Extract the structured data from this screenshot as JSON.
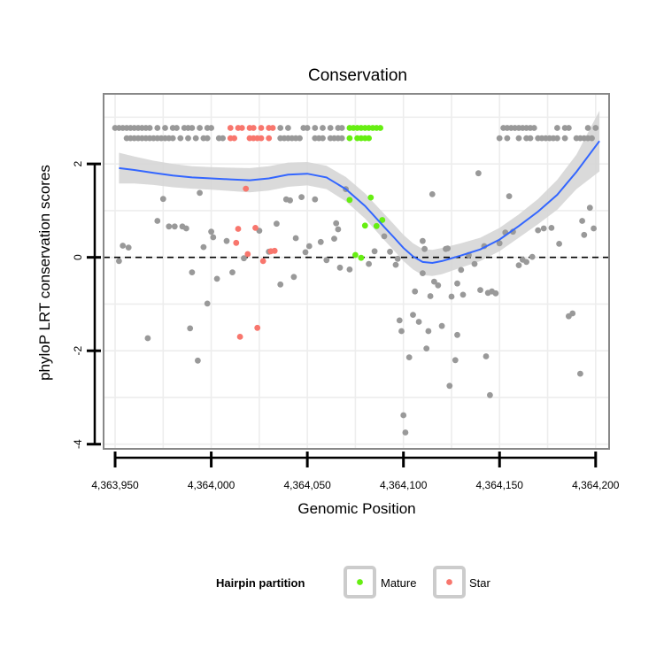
{
  "chart_data": {
    "type": "scatter",
    "title": "Conservation",
    "xlabel": "Genomic Position",
    "ylabel": "phyloP LRT conservation scores",
    "xlim": [
      4363944,
      4364207
    ],
    "ylim": [
      -4.1,
      3.5
    ],
    "x_ticks": [
      4363950,
      4364000,
      4364050,
      4364100,
      4364150,
      4364200
    ],
    "x_tick_labels": [
      "4,363,950",
      "4,364,000",
      "4,364,050",
      "4,364,100",
      "4,364,150",
      "4,364,200"
    ],
    "y_ticks": [
      -4,
      -2,
      0,
      2
    ],
    "y_tick_labels": [
      "-4",
      "-2",
      "0",
      "2"
    ],
    "grid": true,
    "reference_line": {
      "y": 0,
      "style": "dashed"
    },
    "legend": {
      "title": "Hairpin partition",
      "placement": "bottom",
      "entries": [
        {
          "label": "Mature",
          "color": "#66ee11"
        },
        {
          "label": "Star",
          "color": "#f8766d"
        }
      ]
    },
    "colors": {
      "other": "#999999",
      "Mature": "#66ee11",
      "Star": "#f8766d",
      "smooth": "#3366ff",
      "ribbon": "#d3d3d3",
      "panel_border": "#888888",
      "grid": "#ededed"
    },
    "series": [
      {
        "name": "Other",
        "points": [
          [
            4363952,
            -0.08
          ],
          [
            4363954,
            0.25
          ],
          [
            4363957,
            0.21
          ],
          [
            4363967,
            -1.73
          ],
          [
            4363972,
            0.78
          ],
          [
            4363975,
            1.25
          ],
          [
            4363978,
            0.66
          ],
          [
            4363981,
            0.66
          ],
          [
            4363985,
            0.66
          ],
          [
            4363987,
            0.62
          ],
          [
            4363989,
            -1.52
          ],
          [
            4363990,
            -0.32
          ],
          [
            4363993,
            -2.21
          ],
          [
            4363994,
            1.38
          ],
          [
            4363996,
            0.22
          ],
          [
            4363998,
            -0.99
          ],
          [
            4364000,
            0.55
          ],
          [
            4364001,
            0.43
          ],
          [
            4364003,
            -0.46
          ],
          [
            4364008,
            0.35
          ],
          [
            4364011,
            -0.32
          ],
          [
            4364017,
            -0.02
          ],
          [
            4364025,
            0.57
          ],
          [
            4364030,
            0.12
          ],
          [
            4364034,
            0.72
          ],
          [
            4364036,
            -0.58
          ],
          [
            4364039,
            1.24
          ],
          [
            4364041,
            1.22
          ],
          [
            4364043,
            -0.42
          ],
          [
            4364044,
            0.41
          ],
          [
            4364047,
            1.29
          ],
          [
            4364049,
            0.11
          ],
          [
            4364051,
            0.24
          ],
          [
            4364054,
            1.24
          ],
          [
            4364057,
            0.33
          ],
          [
            4364060,
            -0.06
          ],
          [
            4364064,
            0.4
          ],
          [
            4364065,
            0.73
          ],
          [
            4364066,
            0.6
          ],
          [
            4364067,
            -0.22
          ],
          [
            4364070,
            1.46
          ],
          [
            4364072,
            -0.26
          ],
          [
            4364082,
            -0.14
          ],
          [
            4364085,
            0.13
          ],
          [
            4364090,
            0.45
          ],
          [
            4364093,
            0.12
          ],
          [
            4364096,
            -0.16
          ],
          [
            4364097,
            -0.03
          ],
          [
            4364098,
            -1.35
          ],
          [
            4364099,
            -1.58
          ],
          [
            4364100,
            -3.38
          ],
          [
            4364101,
            -3.75
          ],
          [
            4364103,
            -2.14
          ],
          [
            4364105,
            -1.23
          ],
          [
            4364106,
            -0.73
          ],
          [
            4364108,
            -1.38
          ],
          [
            4364110,
            0.35
          ],
          [
            4364110,
            -0.34
          ],
          [
            4364111,
            0.18
          ],
          [
            4364112,
            -1.95
          ],
          [
            4364113,
            -1.58
          ],
          [
            4364114,
            -0.83
          ],
          [
            4364115,
            1.35
          ],
          [
            4364116,
            -0.52
          ],
          [
            4364118,
            -0.6
          ],
          [
            4364120,
            -1.47
          ],
          [
            4364122,
            0.18
          ],
          [
            4364123,
            0.19
          ],
          [
            4364124,
            -2.75
          ],
          [
            4364125,
            -0.84
          ],
          [
            4364127,
            -2.2
          ],
          [
            4364128,
            -1.66
          ],
          [
            4364128,
            -0.56
          ],
          [
            4364130,
            -0.27
          ],
          [
            4364131,
            -0.8
          ],
          [
            4364134,
            0.05
          ],
          [
            4364137,
            -0.14
          ],
          [
            4364139,
            1.8
          ],
          [
            4364140,
            -0.7
          ],
          [
            4364142,
            0.24
          ],
          [
            4364143,
            -2.12
          ],
          [
            4364144,
            -0.76
          ],
          [
            4364145,
            -2.95
          ],
          [
            4364146,
            -0.73
          ],
          [
            4364148,
            -0.77
          ],
          [
            4364150,
            0.3
          ],
          [
            4364153,
            0.53
          ],
          [
            4364155,
            1.31
          ],
          [
            4364157,
            0.55
          ],
          [
            4364160,
            -0.17
          ],
          [
            4364162,
            -0.05
          ],
          [
            4364164,
            -0.1
          ],
          [
            4364167,
            0.01
          ],
          [
            4364170,
            0.58
          ],
          [
            4364173,
            0.62
          ],
          [
            4364177,
            0.63
          ],
          [
            4364181,
            0.29
          ],
          [
            4364186,
            -1.26
          ],
          [
            4364188,
            -1.2
          ],
          [
            4364192,
            -2.49
          ],
          [
            4364193,
            0.78
          ],
          [
            4364194,
            0.48
          ],
          [
            4364197,
            1.06
          ],
          [
            4364199,
            0.62
          ]
        ]
      },
      {
        "name": "Mature",
        "points": [
          [
            4364072,
            1.23
          ],
          [
            4364075,
            0.05
          ],
          [
            4364078,
            -0.01
          ],
          [
            4364080,
            0.68
          ],
          [
            4364083,
            1.28
          ],
          [
            4364086,
            0.67
          ],
          [
            4364089,
            0.8
          ]
        ]
      },
      {
        "name": "Star",
        "points": [
          [
            4364013,
            0.31
          ],
          [
            4364014,
            0.61
          ],
          [
            4364015,
            -1.7
          ],
          [
            4364018,
            1.47
          ],
          [
            4364019,
            0.07
          ],
          [
            4364023,
            0.63
          ],
          [
            4364024,
            -1.51
          ],
          [
            4364027,
            -0.08
          ],
          [
            4364031,
            0.13
          ],
          [
            4364033,
            0.14
          ]
        ]
      }
    ],
    "top_band": {
      "upper_y": 2.77,
      "lower_y": 2.55,
      "upper": {
        "other": [
          4363950,
          4363952,
          4363954,
          4363956,
          4363958,
          4363960,
          4363962,
          4363964,
          4363966,
          4363968,
          4363972,
          4363976,
          4363980,
          4363982,
          4363986,
          4363988,
          4363990,
          4363994,
          4363998,
          4364000,
          4364036,
          4364040,
          4364048,
          4364050,
          4364054,
          4364058,
          4364062,
          4364066,
          4364068,
          4364152,
          4364154,
          4364156,
          4364158,
          4364160,
          4364162,
          4364164,
          4364166,
          4364168,
          4364180,
          4364184,
          4364186,
          4364196,
          4364200
        ],
        "Star": [
          4364010,
          4364014,
          4364016,
          4364020,
          4364022,
          4364026,
          4364030,
          4364032
        ],
        "Mature": [
          4364072,
          4364074,
          4364076,
          4364078,
          4364080,
          4364082,
          4364084,
          4364086,
          4364088
        ]
      },
      "lower": {
        "other": [
          4363956,
          4363958,
          4363960,
          4363962,
          4363964,
          4363966,
          4363968,
          4363970,
          4363972,
          4363974,
          4363976,
          4363978,
          4363980,
          4363984,
          4363988,
          4363992,
          4363996,
          4363998,
          4364004,
          4364006,
          4364036,
          4364038,
          4364040,
          4364042,
          4364044,
          4364046,
          4364054,
          4364056,
          4364058,
          4364062,
          4364064,
          4364066,
          4364068,
          4364150,
          4364154,
          4364160,
          4364164,
          4364166,
          4364170,
          4364172,
          4364174,
          4364176,
          4364178,
          4364180,
          4364184,
          4364190,
          4364192,
          4364194,
          4364196,
          4364198
        ],
        "Star": [
          4364010,
          4364012,
          4364020,
          4364022,
          4364024,
          4364026,
          4364030
        ],
        "Mature": [
          4364072,
          4364076,
          4364078,
          4364080,
          4364082
        ]
      }
    },
    "smooth": {
      "x": [
        4363952,
        4363960,
        4363970,
        4363980,
        4363990,
        4364000,
        4364010,
        4364020,
        4364030,
        4364040,
        4364050,
        4364060,
        4364070,
        4364080,
        4364090,
        4364095,
        4364100,
        4364105,
        4364110,
        4364115,
        4364120,
        4364130,
        4364140,
        4364150,
        4364160,
        4364170,
        4364180,
        4364190,
        4364202
      ],
      "y": [
        1.91,
        1.87,
        1.81,
        1.75,
        1.71,
        1.69,
        1.67,
        1.65,
        1.69,
        1.77,
        1.79,
        1.71,
        1.46,
        1.1,
        0.65,
        0.43,
        0.2,
        0.02,
        -0.1,
        -0.12,
        -0.08,
        0.04,
        0.17,
        0.38,
        0.67,
        0.98,
        1.34,
        1.83,
        2.49
      ],
      "ci_upper": [
        2.24,
        2.16,
        2.07,
        2.0,
        1.95,
        1.93,
        1.92,
        1.91,
        1.95,
        2.03,
        2.04,
        1.96,
        1.72,
        1.37,
        0.93,
        0.71,
        0.48,
        0.3,
        0.18,
        0.16,
        0.2,
        0.3,
        0.42,
        0.63,
        0.92,
        1.25,
        1.66,
        2.2,
        3.14
      ],
      "ci_lower": [
        1.58,
        1.58,
        1.55,
        1.5,
        1.47,
        1.45,
        1.42,
        1.39,
        1.43,
        1.51,
        1.54,
        1.46,
        1.2,
        0.83,
        0.37,
        0.15,
        -0.08,
        -0.26,
        -0.38,
        -0.4,
        -0.36,
        -0.22,
        -0.08,
        0.13,
        0.42,
        0.71,
        1.02,
        1.46,
        1.84
      ]
    }
  }
}
